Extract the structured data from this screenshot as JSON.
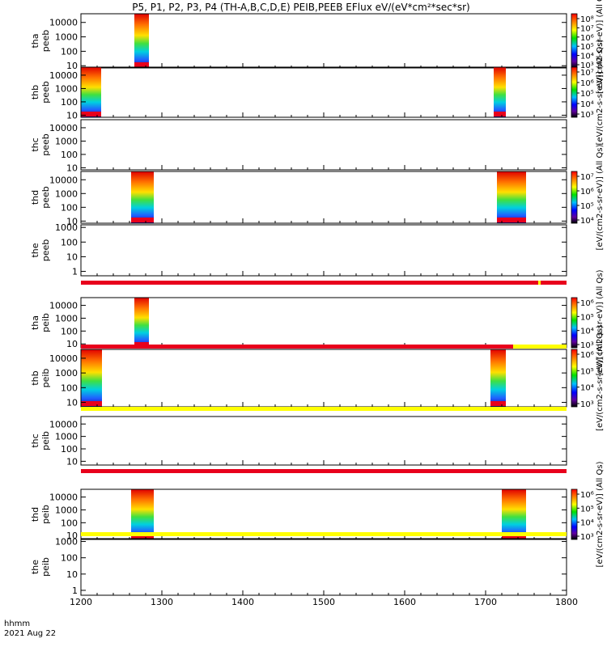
{
  "chart_data": {
    "type": "heatmap",
    "title": "P5, P1, P2, P3, P4 (TH-A,B,C,D,E) PEIB,PEEB EFlux eV/(eV*cm²*sec*sr)",
    "xlabel": "hhmm",
    "date": "2021 Aug 22",
    "x_ticks": [
      "1200",
      "1300",
      "1400",
      "1500",
      "1600",
      "1700",
      "1800"
    ],
    "xlim": [
      1200,
      1800
    ],
    "y_scale": "log",
    "colors": {
      "red": "#e8001c",
      "yellow": "#ffff00",
      "axis": "#000000"
    },
    "panels": [
      {
        "id": "tha_peeb",
        "label": [
          "tha",
          "peeb"
        ],
        "yticks": [
          "10",
          "100",
          "1000",
          "10000"
        ],
        "yrange": [
          7,
          40000
        ],
        "bars": [],
        "blocks": [
          [
            1266,
            1284
          ]
        ],
        "colorbar": [
          "10⁸",
          "10⁷",
          "10⁶",
          "10⁵",
          "10⁴",
          "10³"
        ],
        "cb_title": "[eV/(cm2-s-sr-eV)] (All Qs)"
      },
      {
        "id": "thb_peeb",
        "label": [
          "thb",
          "peeb"
        ],
        "yticks": [
          "10",
          "100",
          "1000",
          "10000"
        ],
        "yrange": [
          7,
          40000
        ],
        "bars": [],
        "blocks": [
          [
            1200,
            1225
          ],
          [
            1710,
            1725
          ]
        ],
        "colorbar": [
          "10⁷",
          "10⁶",
          "10⁵",
          "10⁴",
          "10³"
        ],
        "cb_title": "[eV/(cm2-s-sr-eV)] (All Qs)"
      },
      {
        "id": "thc_peeb",
        "label": [
          "thc",
          "peeb"
        ],
        "yticks": [
          "10",
          "100",
          "1000",
          "10000"
        ],
        "yrange": [
          7,
          40000
        ],
        "bars": [],
        "blocks": [],
        "colorbar": [],
        "cb_title": "[eV/(cm2-s-sr-eV)] (All Qs)"
      },
      {
        "id": "thd_peeb",
        "label": [
          "thd",
          "peeb"
        ],
        "yticks": [
          "10",
          "100",
          "1000",
          "10000"
        ],
        "yrange": [
          7,
          40000
        ],
        "bars": [],
        "blocks": [
          [
            1262,
            1290
          ],
          [
            1714,
            1750
          ]
        ],
        "colorbar": [
          "10⁷",
          "10⁶",
          "10⁵",
          "10⁴"
        ],
        "cb_title": "[eV/(cm2-s-sr-eV)] (All Qs)"
      },
      {
        "id": "the_peeb",
        "label": [
          "the",
          "peeb"
        ],
        "yticks": [
          "1",
          "10",
          "100",
          "1000"
        ],
        "yrange": [
          0.5,
          1500
        ],
        "bars": [
          {
            "from": 1200,
            "to": 1765,
            "color": "#e8001c"
          },
          {
            "from": 1765,
            "to": 1768,
            "color": "#ffff00"
          },
          {
            "from": 1768,
            "to": 1800,
            "color": "#e8001c"
          }
        ],
        "blocks": [],
        "colorbar": [],
        "cb_title": "[eV/(cm2-s-sr-eV)] (All Qs)"
      },
      {
        "id": "tha_peib",
        "label": [
          "tha",
          "peib"
        ],
        "yticks": [
          "10",
          "100",
          "1000",
          "10000"
        ],
        "yrange": [
          5,
          40000
        ],
        "bars": [
          {
            "from": 1200,
            "to": 1734,
            "color": "#e8001c"
          },
          {
            "from": 1734,
            "to": 1800,
            "color": "#ffff00"
          }
        ],
        "blocks": [
          [
            1266,
            1284
          ]
        ],
        "colorbar": [
          "10⁶",
          "10⁵",
          "10⁴",
          "10³"
        ],
        "cb_title": "[eV/(cm2-s-sr-eV)] (All Qs)"
      },
      {
        "id": "thb_peib",
        "label": [
          "thb",
          "peib"
        ],
        "yticks": [
          "10",
          "100",
          "1000",
          "10000"
        ],
        "yrange": [
          5,
          40000
        ],
        "bars": [
          {
            "from": 1200,
            "to": 1800,
            "color": "#ffff00"
          }
        ],
        "blocks": [
          [
            1200,
            1226
          ],
          [
            1706,
            1725
          ]
        ],
        "colorbar": [
          "10⁶",
          "10⁵",
          "10⁴",
          "10³"
        ],
        "cb_title": "[eV/(cm2-s-sr-eV)] (All Qs)"
      },
      {
        "id": "thc_peib",
        "label": [
          "thc",
          "peib"
        ],
        "yticks": [
          "10",
          "100",
          "1000",
          "10000"
        ],
        "yrange": [
          5,
          40000
        ],
        "bars": [
          {
            "from": 1200,
            "to": 1800,
            "color": "#e8001c"
          }
        ],
        "blocks": [],
        "colorbar": [],
        "cb_title": "[eV/(cm2-s-sr-eV)] (All Qs)"
      },
      {
        "id": "thd_peib",
        "label": [
          "thd",
          "peib"
        ],
        "yticks": [
          "10",
          "100",
          "1000",
          "10000"
        ],
        "yrange": [
          5,
          40000
        ],
        "bars": [
          {
            "from": 1200,
            "to": 1800,
            "color": "#ffff00"
          }
        ],
        "blocks": [
          [
            1262,
            1290
          ],
          [
            1720,
            1750
          ]
        ],
        "colorbar": [
          "10⁶",
          "10⁵",
          "10⁴",
          "10³"
        ],
        "cb_title": "[eV/(cm2-s-sr-eV)] (All Qs)"
      },
      {
        "id": "the_peib",
        "label": [
          "the",
          "peib"
        ],
        "yticks": [
          "1",
          "10",
          "100",
          "1000"
        ],
        "yrange": [
          0.5,
          1500
        ],
        "bars": [],
        "blocks": [],
        "colorbar": [],
        "cb_title": "[eV/(cm2-s-sr-eV)] (All Qs)"
      }
    ]
  }
}
